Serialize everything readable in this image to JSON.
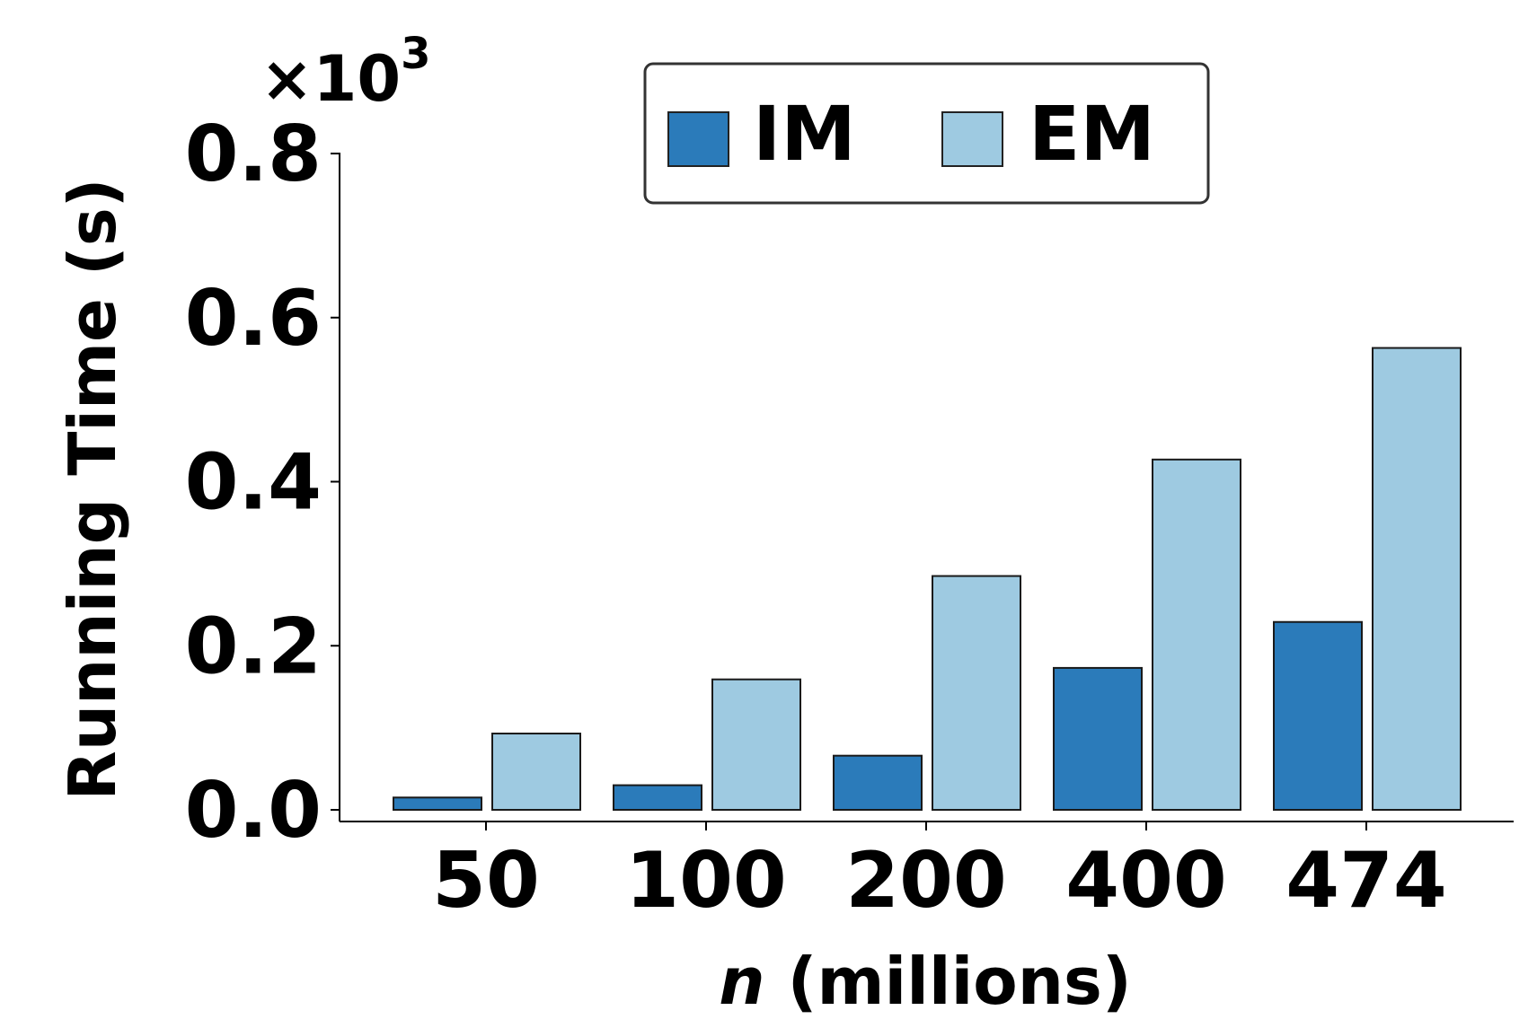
{
  "chart_data": {
    "type": "bar",
    "categories": [
      "50",
      "100",
      "200",
      "400",
      "474"
    ],
    "series": [
      {
        "name": "IM",
        "values": [
          0.015,
          0.03,
          0.066,
          0.173,
          0.229
        ],
        "color": "#2b7bba"
      },
      {
        "name": "EM",
        "values": [
          0.093,
          0.159,
          0.285,
          0.427,
          0.563
        ],
        "color": "#9ecae1"
      }
    ],
    "ylabel": "Running Time (s)",
    "xlabel_var": "n",
    "xlabel_rest": " (millions)",
    "y_multiplier_base": "×10",
    "y_multiplier_exp": "3",
    "yticks": [
      0.0,
      0.2,
      0.4,
      0.6,
      0.8
    ],
    "ytick_labels": [
      "0.0",
      "0.2",
      "0.4",
      "0.6",
      "0.8"
    ],
    "ylim": [
      0.0,
      0.8
    ],
    "legend_placement": "top-center",
    "grid": false
  }
}
